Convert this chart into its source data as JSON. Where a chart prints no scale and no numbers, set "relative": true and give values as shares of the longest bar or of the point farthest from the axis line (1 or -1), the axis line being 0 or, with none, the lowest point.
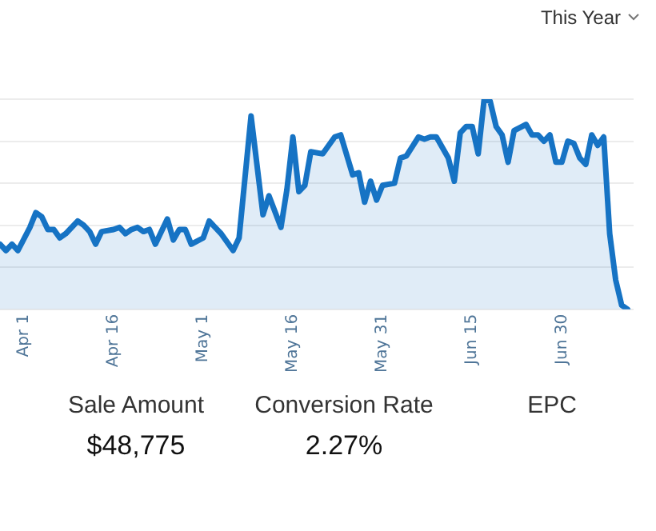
{
  "chart_data": [
    {
      "type": "area",
      "relative": true,
      "grid": "y",
      "marker": "none",
      "annotations": [
        "This Year"
      ],
      "x": [
        "--03-28",
        "--03-29",
        "--03-30",
        "--03-31",
        "--04-02",
        "--04-03",
        "--04-04",
        "--04-05",
        "--04-06",
        "--04-07",
        "--04-08",
        "--04-10",
        "--04-11",
        "--04-12",
        "--04-13",
        "--04-14",
        "--04-16",
        "--04-17",
        "--04-18",
        "--04-19",
        "--04-20",
        "--04-21",
        "--04-22",
        "--04-23",
        "--04-25",
        "--04-26",
        "--04-27",
        "--04-28",
        "--04-29",
        "--05-01",
        "--05-02",
        "--05-03",
        "--05-04",
        "--05-06",
        "--05-07",
        "--05-09",
        "--05-11",
        "--05-12",
        "--05-14",
        "--05-15",
        "--05-16",
        "--05-17",
        "--05-18",
        "--05-19",
        "--05-21",
        "--05-23",
        "--05-24",
        "--05-26",
        "--05-27",
        "--05-28",
        "--05-29",
        "--05-30",
        "--05-31",
        "--06-02",
        "--06-03",
        "--06-04",
        "--06-06",
        "--06-07",
        "--06-08",
        "--06-09",
        "--06-11",
        "--06-12",
        "--06-13",
        "--06-14",
        "--06-15",
        "--06-16",
        "--06-17",
        "--06-18",
        "--06-19",
        "--06-20",
        "--06-21",
        "--06-22",
        "--06-24",
        "--06-25",
        "--06-26",
        "--06-27",
        "--06-28",
        "--06-29",
        "--06-30",
        "--07-01",
        "--07-02",
        "--07-03",
        "--07-04",
        "--07-05",
        "--07-06",
        "--07-07",
        "--07-08",
        "--07-09",
        "--07-10",
        "--07-11"
      ],
      "xlim": [
        "--03-28",
        "--07-12"
      ],
      "xticks": [
        {
          "value": "--04-01",
          "label": "Apr 1"
        },
        {
          "value": "--04-16",
          "label": "Apr 16"
        },
        {
          "value": "--05-01",
          "label": "May 1"
        },
        {
          "value": "--05-16",
          "label": "May 16"
        },
        {
          "value": "--05-31",
          "label": "May 31"
        },
        {
          "value": "--06-15",
          "label": "Jun 15"
        },
        {
          "value": "--06-30",
          "label": "Jun 30"
        }
      ],
      "series": [
        {
          "color": "#1673c4",
          "values": [
            0.31,
            0.28,
            0.31,
            0.28,
            0.39,
            0.46,
            0.44,
            0.38,
            0.38,
            0.34,
            0.36,
            0.42,
            0.4,
            0.37,
            0.31,
            0.37,
            0.38,
            0.39,
            0.36,
            0.38,
            0.39,
            0.37,
            0.38,
            0.31,
            0.43,
            0.33,
            0.38,
            0.38,
            0.31,
            0.34,
            0.42,
            0.39,
            0.36,
            0.28,
            0.34,
            0.92,
            0.45,
            0.54,
            0.39,
            0.57,
            0.82,
            0.56,
            0.59,
            0.75,
            0.74,
            0.82,
            0.83,
            0.64,
            0.65,
            0.51,
            0.61,
            0.52,
            0.59,
            0.6,
            0.72,
            0.73,
            0.82,
            0.81,
            0.82,
            0.82,
            0.72,
            0.61,
            0.84,
            0.87,
            0.87,
            0.74,
            1,
            0.99,
            0.87,
            0.83,
            0.7,
            0.85,
            0.88,
            0.83,
            0.83,
            0.8,
            0.83,
            0.7,
            0.7,
            0.8,
            0.79,
            0.72,
            0.69,
            0.83,
            0.78,
            0.82,
            0.36,
            0.14,
            0.02,
            0
          ]
        }
      ]
    },
    {
      "type": "other",
      "categories": [
        "Sale Amount",
        "Conversion Rate",
        "EPC"
      ],
      "value_labels": [
        "$48,775",
        "2.27%",
        null
      ]
    }
  ]
}
